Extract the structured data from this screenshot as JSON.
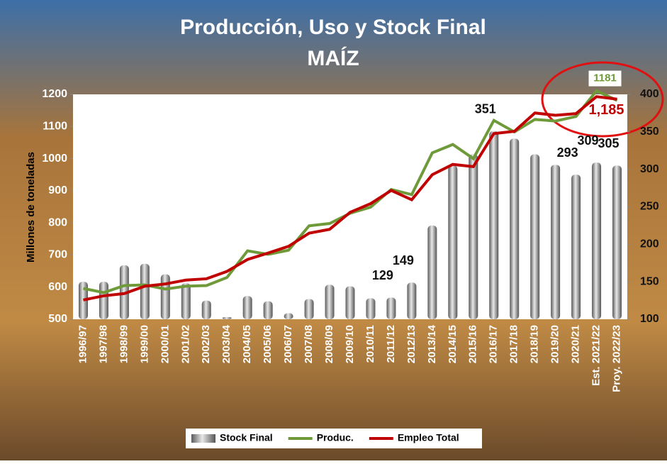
{
  "chart_data": {
    "type": "combo",
    "title": "Producción, Uso y Stock Final",
    "subtitle": "MAÍZ",
    "y_label": "Millones de toneladas",
    "categories": [
      "1996/97",
      "1997/98",
      "1998/99",
      "1999/00",
      "2000/01",
      "2001/02",
      "2002/03",
      "2003/04",
      "2004/05",
      "2005/06",
      "2006/07",
      "2007/08",
      "2008/09",
      "2009/10",
      "2010/11",
      "2011/12",
      "2012/13",
      "2013/14",
      "2014/15",
      "2015/16",
      "2016/17",
      "2017/18",
      "2018/19",
      "2019/20",
      "2020/21",
      "Est. 2021/22",
      "Proy. 2022/23"
    ],
    "ylim": [
      500,
      1200
    ],
    "yticks": [
      500,
      600,
      700,
      800,
      900,
      1000,
      1100,
      1200
    ],
    "y2lim": [
      100,
      400
    ],
    "y2ticks": [
      100,
      150,
      200,
      250,
      300,
      350,
      400
    ],
    "legend": "bottom",
    "series": [
      {
        "name": "Stock Final",
        "type": "bar",
        "axis": "y2",
        "color": "#8c8c8c",
        "values": [
          150,
          150,
          172,
          174,
          160,
          148,
          125,
          103,
          131,
          124,
          108,
          127,
          146,
          144,
          128,
          129,
          149,
          225,
          305,
          320,
          351,
          341,
          320,
          306,
          293,
          309,
          305
        ],
        "value_labels": [
          null,
          null,
          null,
          null,
          null,
          null,
          null,
          null,
          null,
          null,
          null,
          null,
          null,
          null,
          null,
          "129",
          "149",
          null,
          null,
          null,
          "351",
          null,
          null,
          null,
          "293",
          "309",
          "305"
        ]
      },
      {
        "name": "Produc.",
        "type": "line",
        "color": "#6f9a3a",
        "values": [
          596,
          583,
          605,
          607,
          594,
          603,
          605,
          630,
          713,
          702,
          715,
          791,
          798,
          830,
          849,
          904,
          888,
          1018,
          1044,
          1000,
          1119,
          1083,
          1122,
          1117,
          1131,
          1211,
          1181
        ],
        "value_labels": [
          null,
          null,
          null,
          null,
          null,
          null,
          null,
          null,
          null,
          null,
          null,
          null,
          null,
          null,
          null,
          null,
          null,
          null,
          null,
          null,
          null,
          null,
          null,
          null,
          null,
          null,
          "1181"
        ]
      },
      {
        "name": "Empleo Total",
        "type": "line",
        "color": "#c00000",
        "values": [
          560,
          573,
          580,
          603,
          610,
          622,
          626,
          649,
          686,
          706,
          727,
          768,
          780,
          833,
          860,
          901,
          872,
          950,
          982,
          975,
          1078,
          1085,
          1142,
          1135,
          1140,
          1193,
          1185
        ],
        "value_labels": [
          null,
          null,
          null,
          null,
          null,
          null,
          null,
          null,
          null,
          null,
          null,
          null,
          null,
          null,
          null,
          null,
          null,
          null,
          null,
          null,
          null,
          null,
          null,
          null,
          null,
          null,
          "1,185"
        ]
      }
    ]
  }
}
